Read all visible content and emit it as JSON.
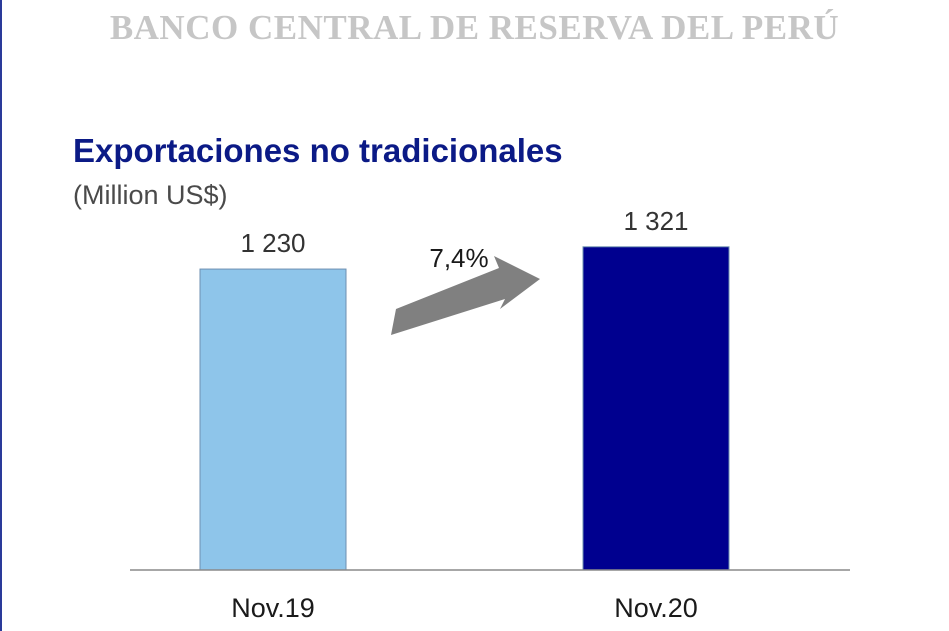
{
  "header": {
    "text": "BANCO CENTRAL DE RESERVA DEL PERÚ"
  },
  "chart_data": {
    "type": "bar",
    "title": "Exportaciones no tradicionales",
    "subtitle": "(Million US$)",
    "categories": [
      "Nov.19",
      "Nov.20"
    ],
    "values": [
      1230,
      1321
    ],
    "value_labels": [
      "1 230",
      "1 321"
    ],
    "bar_colors": [
      "#8ec5ea",
      "#00008f"
    ],
    "ylim": [
      0,
      1500
    ],
    "grid": false,
    "annotation": {
      "text": "7,4%",
      "type": "growth-arrow",
      "color": "#808080"
    }
  }
}
